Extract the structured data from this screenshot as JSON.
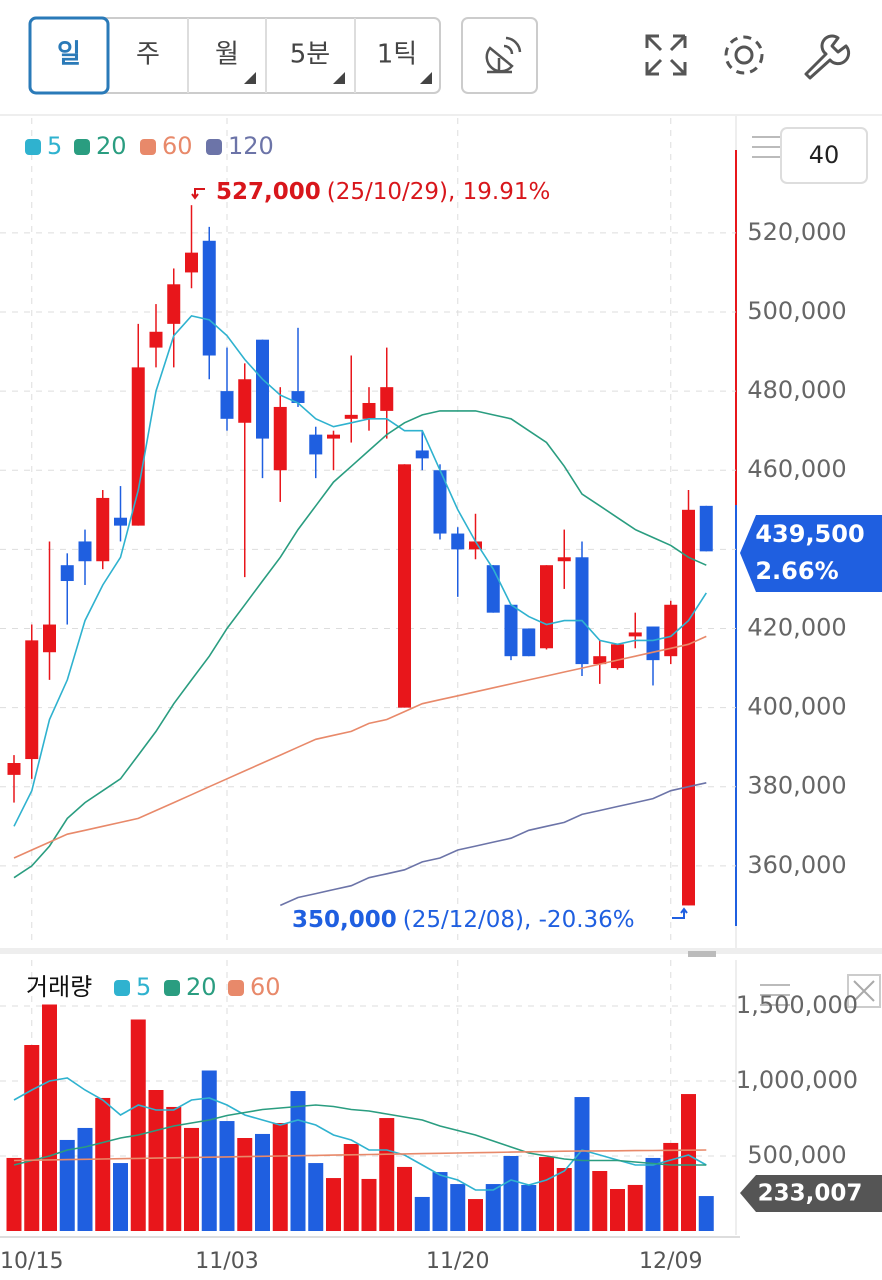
{
  "toolbar": {
    "periods": [
      "일",
      "주",
      "월",
      "5분",
      "1틱"
    ],
    "ma_input": "40"
  },
  "chart_data": [
    {
      "type": "candlestick",
      "up_color": "#e8161b",
      "down_color": "#1f5fe0",
      "open": [
        383000,
        387000,
        414000,
        436000,
        442000,
        437000,
        448000,
        446000,
        491000,
        497000,
        510000,
        518000,
        480000,
        472000,
        493000,
        460000,
        480000,
        469000,
        468000,
        473000,
        473000,
        475000,
        400000,
        465000,
        460000,
        444000,
        440000,
        436000,
        426000,
        420000,
        415000,
        437000,
        438000,
        411000,
        410000,
        418000,
        420500,
        413000,
        350000,
        451000
      ],
      "high": [
        388000,
        421000,
        442000,
        439000,
        445000,
        455000,
        456000,
        497000,
        502000,
        511000,
        527000,
        521500,
        491000,
        487000,
        493000,
        481000,
        496000,
        471000,
        470000,
        489000,
        481000,
        491000,
        461500,
        470000,
        461500,
        445600,
        449000,
        436000,
        426000,
        420000,
        436000,
        445000,
        442000,
        417000,
        416000,
        424000,
        420500,
        427000,
        455000,
        451000
      ],
      "low": [
        376000,
        382000,
        407000,
        421000,
        431000,
        435000,
        442000,
        446000,
        486000,
        486000,
        506000,
        483000,
        470000,
        433000,
        458000,
        452000,
        476000,
        458000,
        460000,
        467000,
        470000,
        468000,
        400000,
        460000,
        442500,
        428000,
        437500,
        424000,
        412000,
        413000,
        414700,
        430000,
        408000,
        406000,
        409600,
        415000,
        405600,
        411000,
        350000,
        439500
      ],
      "close": [
        386000,
        417000,
        421000,
        432000,
        437000,
        453000,
        446000,
        486000,
        495000,
        507000,
        515000,
        489000,
        473000,
        483000,
        468000,
        476000,
        477000,
        464000,
        469000,
        474000,
        477000,
        481000,
        461500,
        463000,
        444000,
        440000,
        442000,
        424000,
        413000,
        413000,
        436000,
        438000,
        411000,
        413000,
        416000,
        419000,
        412000,
        426000,
        450000,
        439500
      ],
      "series": [
        {
          "name": "5",
          "color": "#2fb2cf",
          "values": [
            370000,
            379000,
            397000,
            407000,
            422000,
            431000,
            438000,
            455000,
            480000,
            494000,
            499000,
            498000,
            494000,
            488000,
            483000,
            479000,
            477000,
            473000,
            471000,
            472000,
            473000,
            473000,
            470000,
            470000,
            460000,
            450000,
            442000,
            435000,
            426000,
            423000,
            421000,
            422000,
            422000,
            417000,
            416000,
            417000,
            417000,
            418000,
            422000,
            429000
          ]
        },
        {
          "name": "20",
          "color": "#2a9d80",
          "values": [
            357000,
            360000,
            365000,
            372000,
            376000,
            379000,
            382000,
            388000,
            394000,
            401000,
            407000,
            413000,
            420000,
            426000,
            432000,
            438000,
            445000,
            451000,
            457000,
            461000,
            465000,
            469000,
            472000,
            474000,
            475000,
            475000,
            475000,
            474000,
            473000,
            470000,
            467000,
            461000,
            454000,
            451000,
            448000,
            445000,
            443000,
            441000,
            438000,
            436000
          ]
        },
        {
          "name": "60",
          "color": "#e8896a",
          "values": [
            362000,
            364000,
            366000,
            368000,
            369000,
            370000,
            371000,
            372000,
            374000,
            376000,
            378000,
            380000,
            382000,
            384000,
            386000,
            388000,
            390000,
            392000,
            393000,
            394000,
            396000,
            397000,
            399000,
            401000,
            402000,
            403000,
            404000,
            405000,
            406000,
            407000,
            408000,
            409000,
            410000,
            411000,
            412000,
            413000,
            414000,
            415000,
            416000,
            418000
          ]
        },
        {
          "name": "120",
          "color": "#6c74a8",
          "values": [
            null,
            null,
            null,
            null,
            null,
            null,
            null,
            null,
            null,
            null,
            null,
            null,
            null,
            null,
            null,
            350000,
            352000,
            353000,
            354000,
            355000,
            357000,
            358000,
            359000,
            361000,
            362000,
            364000,
            365000,
            366000,
            367000,
            369000,
            370000,
            371000,
            373000,
            374000,
            375000,
            376000,
            377000,
            379000,
            380000,
            381000
          ]
        }
      ],
      "ylim": [
        340000,
        546000
      ],
      "yticks": [
        {
          "value": 360000,
          "label": "360,000"
        },
        {
          "value": 380000,
          "label": "380,000"
        },
        {
          "value": 400000,
          "label": "400,000"
        },
        {
          "value": 420000,
          "label": "420,000"
        },
        {
          "value": 440000,
          "label": "440,000"
        },
        {
          "value": 460000,
          "label": "460,000"
        },
        {
          "value": 480000,
          "label": "480,000"
        },
        {
          "value": 500000,
          "label": "500,000"
        },
        {
          "value": 520000,
          "label": "520,000"
        }
      ],
      "high_label": "527,000",
      "high_note": "(25/10/29), 19.91%",
      "low_label": "350,000",
      "low_note": "(25/12/08), -20.36%",
      "last_price_label": "439,500",
      "last_change_label": "2.66%"
    },
    {
      "type": "bar",
      "title": "거래량",
      "categories": [
        null,
        "10/15",
        null,
        null,
        null,
        null,
        null,
        null,
        null,
        null,
        null,
        null,
        "11/03",
        null,
        null,
        null,
        null,
        null,
        null,
        null,
        null,
        null,
        null,
        null,
        null,
        "11/20",
        null,
        null,
        null,
        null,
        null,
        null,
        null,
        null,
        null,
        null,
        null,
        "12/09",
        null,
        null
      ],
      "values": [
        487000,
        1240000,
        1510000,
        607000,
        687000,
        887000,
        453000,
        1410000,
        940000,
        827000,
        687000,
        1070000,
        733000,
        620000,
        647000,
        720000,
        933000,
        453000,
        353000,
        580000,
        347000,
        753000,
        427000,
        227000,
        393000,
        313000,
        213000,
        313000,
        500000,
        307000,
        493000,
        420000,
        893000,
        400000,
        280000,
        307000,
        487000,
        587000,
        913000,
        233007
      ],
      "series": [
        {
          "name": "5",
          "color": "#2fb2cf",
          "values": [
            873000,
            940000,
            1000000,
            1020000,
            940000,
            873000,
            773000,
            840000,
            807000,
            807000,
            873000,
            887000,
            840000,
            773000,
            740000,
            707000,
            740000,
            707000,
            640000,
            607000,
            540000,
            540000,
            507000,
            440000,
            373000,
            340000,
            273000,
            273000,
            340000,
            307000,
            340000,
            400000,
            540000,
            507000,
            473000,
            440000,
            440000,
            473000,
            507000,
            440000
          ]
        },
        {
          "name": "20",
          "color": "#2a9d80",
          "values": [
            440000,
            470000,
            500000,
            540000,
            560000,
            590000,
            620000,
            640000,
            670000,
            700000,
            720000,
            740000,
            770000,
            790000,
            810000,
            820000,
            830000,
            840000,
            830000,
            810000,
            800000,
            780000,
            760000,
            740000,
            700000,
            670000,
            640000,
            600000,
            560000,
            520000,
            500000,
            480000,
            470000,
            470000,
            470000,
            460000,
            450000,
            440000,
            440000,
            440000
          ]
        },
        {
          "name": "60",
          "color": "#e8896a",
          "values": [
            470000,
            472000,
            474000,
            476000,
            478000,
            480000,
            482000,
            484000,
            486000,
            488000,
            490000,
            492000,
            494000,
            496000,
            498000,
            500000,
            502000,
            504000,
            506000,
            508000,
            510000,
            512000,
            514000,
            516000,
            518000,
            520000,
            522000,
            524000,
            526000,
            528000,
            530000,
            532000,
            533000,
            534000,
            535000,
            536000,
            537000,
            538000,
            539000,
            540000
          ]
        }
      ],
      "ylim": [
        0,
        1700000
      ],
      "yticks": [
        {
          "value": 500000,
          "label": "500,000"
        },
        {
          "value": 1000000,
          "label": "1,000,000"
        },
        {
          "value": 1500000,
          "label": "1,500,000"
        }
      ],
      "last_label": "233,007"
    }
  ]
}
